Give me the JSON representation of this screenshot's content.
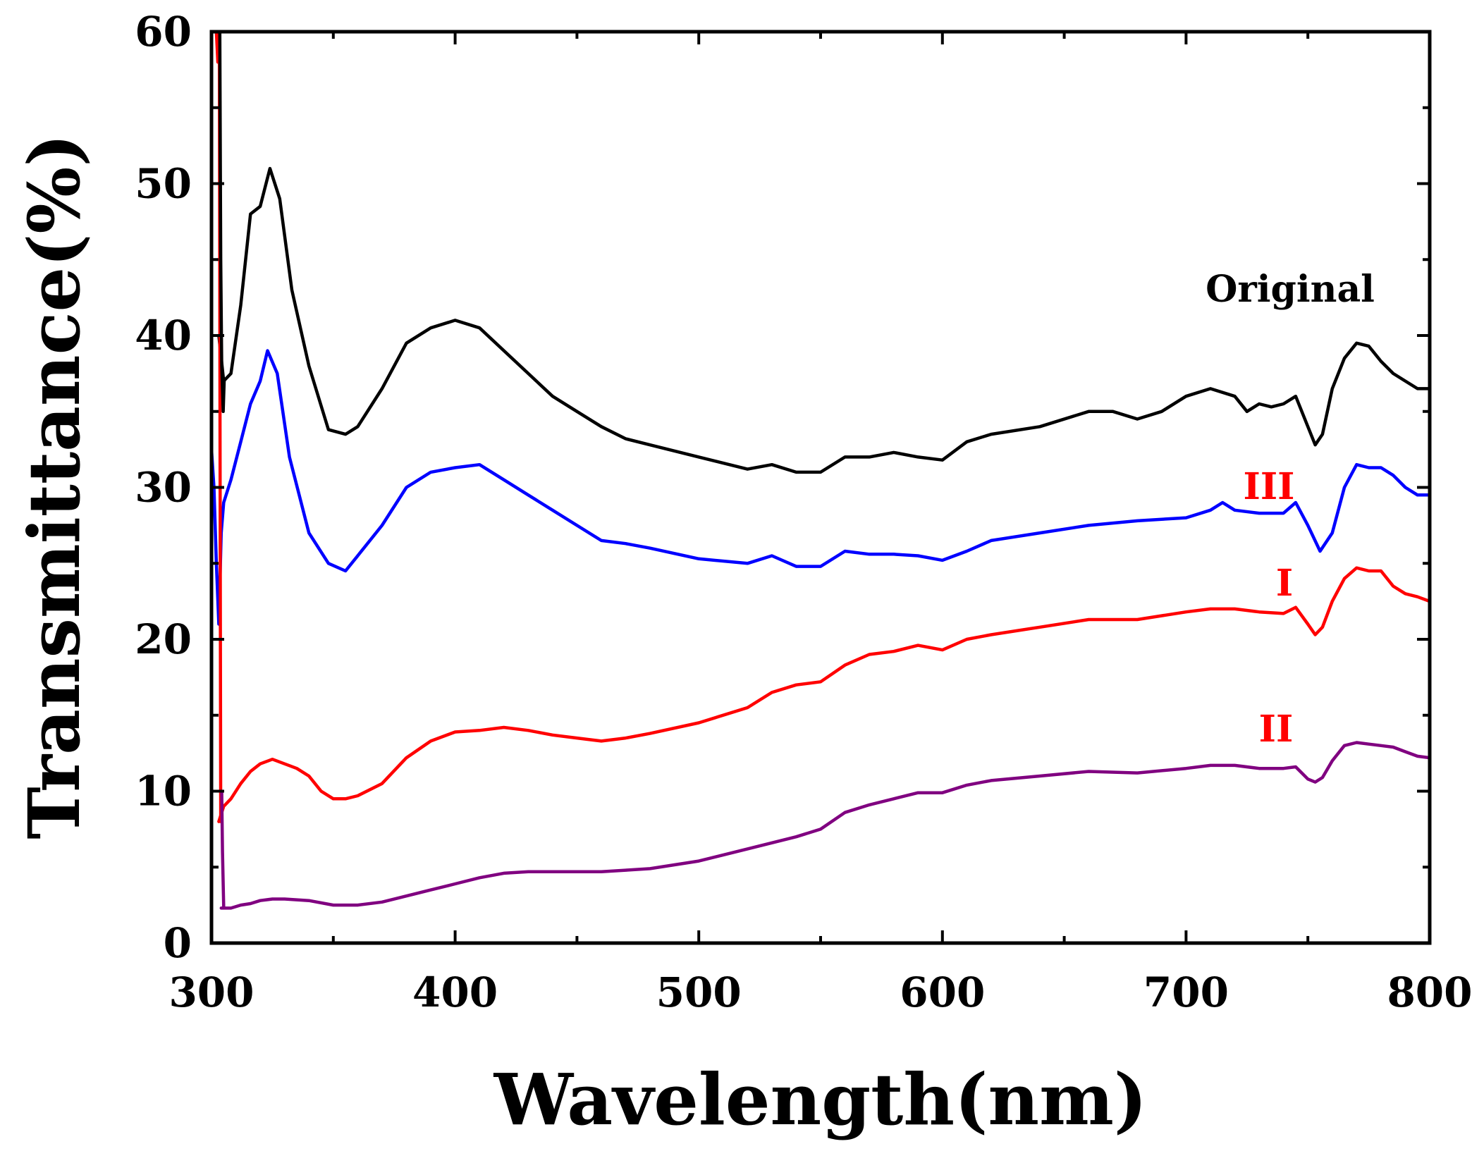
{
  "chart_data": {
    "type": "line",
    "title": "",
    "xlabel": "Wavelength(nm)",
    "ylabel": "Transmittance(%)",
    "xlim": [
      300,
      800
    ],
    "ylim": [
      0,
      60
    ],
    "xticks": [
      300,
      400,
      500,
      600,
      700,
      800
    ],
    "yticks": [
      0,
      10,
      20,
      30,
      40,
      50,
      60
    ],
    "grid": false,
    "series": [
      {
        "name": "Original",
        "label": "Original",
        "color": "#000000",
        "label_color": "#000000",
        "x": [
          303,
          305,
          308,
          312,
          316,
          320,
          324,
          328,
          333,
          340,
          348,
          355,
          360,
          370,
          380,
          390,
          400,
          410,
          420,
          430,
          440,
          450,
          460,
          470,
          480,
          500,
          520,
          530,
          540,
          550,
          560,
          570,
          580,
          590,
          600,
          610,
          620,
          640,
          660,
          670,
          680,
          690,
          700,
          710,
          720,
          725,
          730,
          735,
          740,
          745,
          750,
          753,
          756,
          760,
          765,
          770,
          775,
          780,
          785,
          790,
          795,
          800
        ],
        "y": [
          40,
          37,
          37.5,
          42,
          48,
          48.5,
          51,
          49,
          43,
          38,
          33.8,
          33.5,
          34,
          36.5,
          39.5,
          40.5,
          41,
          40.5,
          39,
          37.5,
          36,
          35,
          34,
          33.2,
          32.8,
          32,
          31.2,
          31.5,
          31,
          31,
          32,
          32,
          32.3,
          32,
          31.8,
          33,
          33.5,
          34,
          35,
          35,
          34.5,
          35,
          36,
          36.5,
          36,
          35,
          35.5,
          35.3,
          35.5,
          36,
          34,
          32.8,
          33.5,
          36.5,
          38.5,
          39.5,
          39.3,
          38.3,
          37.5,
          37,
          36.5,
          36.5
        ]
      },
      {
        "name": "III",
        "label": "III",
        "color": "#0000ff",
        "label_color": "#ff0000",
        "x": [
          300,
          301,
          302,
          303,
          304,
          305,
          308,
          312,
          316,
          320,
          323,
          327,
          332,
          340,
          348,
          355,
          360,
          370,
          380,
          390,
          400,
          410,
          420,
          430,
          440,
          450,
          460,
          470,
          480,
          500,
          520,
          530,
          540,
          550,
          560,
          570,
          580,
          590,
          600,
          610,
          620,
          640,
          660,
          680,
          700,
          710,
          715,
          720,
          730,
          740,
          745,
          750,
          755,
          760,
          765,
          770,
          775,
          780,
          785,
          790,
          795,
          800
        ],
        "y": [
          32.5,
          30,
          25,
          21,
          27,
          29,
          30.5,
          33,
          35.5,
          37,
          39,
          37.5,
          32,
          27,
          25,
          24.5,
          25.5,
          27.5,
          30,
          31,
          31.3,
          31.5,
          30.5,
          29.5,
          28.5,
          27.5,
          26.5,
          26.3,
          26,
          25.3,
          25,
          25.5,
          24.8,
          24.8,
          25.8,
          25.6,
          25.6,
          25.5,
          25.2,
          25.8,
          26.5,
          27,
          27.5,
          27.8,
          28,
          28.5,
          29,
          28.5,
          28.3,
          28.3,
          29,
          27.5,
          25.8,
          27,
          30,
          31.5,
          31.3,
          31.3,
          30.8,
          30,
          29.5,
          29.5
        ]
      },
      {
        "name": "I",
        "label": "I",
        "color": "#ff0000",
        "label_color": "#ff0000",
        "x": [
          303,
          304,
          305,
          308,
          312,
          316,
          320,
          325,
          330,
          335,
          340,
          345,
          350,
          355,
          360,
          370,
          380,
          390,
          400,
          410,
          420,
          430,
          440,
          450,
          460,
          470,
          480,
          500,
          520,
          530,
          540,
          550,
          560,
          570,
          580,
          590,
          600,
          610,
          620,
          640,
          660,
          680,
          700,
          710,
          720,
          730,
          740,
          745,
          750,
          753,
          756,
          760,
          765,
          770,
          775,
          780,
          785,
          790,
          795,
          800
        ],
        "y": [
          8,
          8.5,
          9,
          9.5,
          10.5,
          11.3,
          11.8,
          12.1,
          11.8,
          11.5,
          11,
          10,
          9.5,
          9.5,
          9.7,
          10.5,
          12.2,
          13.3,
          13.9,
          14,
          14.2,
          14,
          13.7,
          13.5,
          13.3,
          13.5,
          13.8,
          14.5,
          15.5,
          16.5,
          17,
          17.2,
          18.3,
          19,
          19.2,
          19.6,
          19.3,
          20,
          20.3,
          20.8,
          21.3,
          21.3,
          21.8,
          22,
          22,
          21.8,
          21.7,
          22.1,
          21,
          20.3,
          20.8,
          22.5,
          24,
          24.7,
          24.5,
          24.5,
          23.5,
          23,
          22.8,
          22.5
        ]
      },
      {
        "name": "II",
        "label": "II",
        "color": "#800080",
        "label_color": "#ff0000",
        "x": [
          304,
          305,
          308,
          312,
          316,
          320,
          325,
          330,
          340,
          350,
          360,
          370,
          380,
          390,
          400,
          410,
          420,
          430,
          440,
          450,
          460,
          470,
          480,
          500,
          520,
          540,
          550,
          560,
          570,
          580,
          590,
          600,
          610,
          620,
          640,
          660,
          680,
          700,
          710,
          720,
          730,
          740,
          745,
          750,
          753,
          756,
          760,
          765,
          770,
          775,
          780,
          785,
          790,
          795,
          800
        ],
        "y": [
          2.3,
          2.3,
          2.3,
          2.5,
          2.6,
          2.8,
          2.9,
          2.9,
          2.8,
          2.5,
          2.5,
          2.7,
          3.1,
          3.5,
          3.9,
          4.3,
          4.6,
          4.7,
          4.7,
          4.7,
          4.7,
          4.8,
          4.9,
          5.4,
          6.2,
          7,
          7.5,
          8.6,
          9.1,
          9.5,
          9.9,
          9.9,
          10.4,
          10.7,
          11,
          11.3,
          11.2,
          11.5,
          11.7,
          11.7,
          11.5,
          11.5,
          11.6,
          10.8,
          10.6,
          10.9,
          12,
          13,
          13.2,
          13.1,
          13,
          12.9,
          12.6,
          12.3,
          12.2
        ]
      }
    ],
    "artifacts": [
      {
        "name": "red spike",
        "color": "#ff0000",
        "x": [
          301.5,
          302,
          302.6,
          303.2,
          303.8
        ],
        "y": [
          60,
          60,
          58,
          60,
          8
        ]
      },
      {
        "name": "purple drop",
        "color": "#800080",
        "x": [
          304.2,
          304.5,
          305
        ],
        "y": [
          10,
          6,
          2.4
        ]
      },
      {
        "name": "black spike",
        "color": "#000000",
        "x": [
          303.4,
          303.8,
          304.2,
          304.8,
          305.2
        ],
        "y": [
          60,
          45,
          38,
          35,
          37
        ]
      }
    ]
  }
}
